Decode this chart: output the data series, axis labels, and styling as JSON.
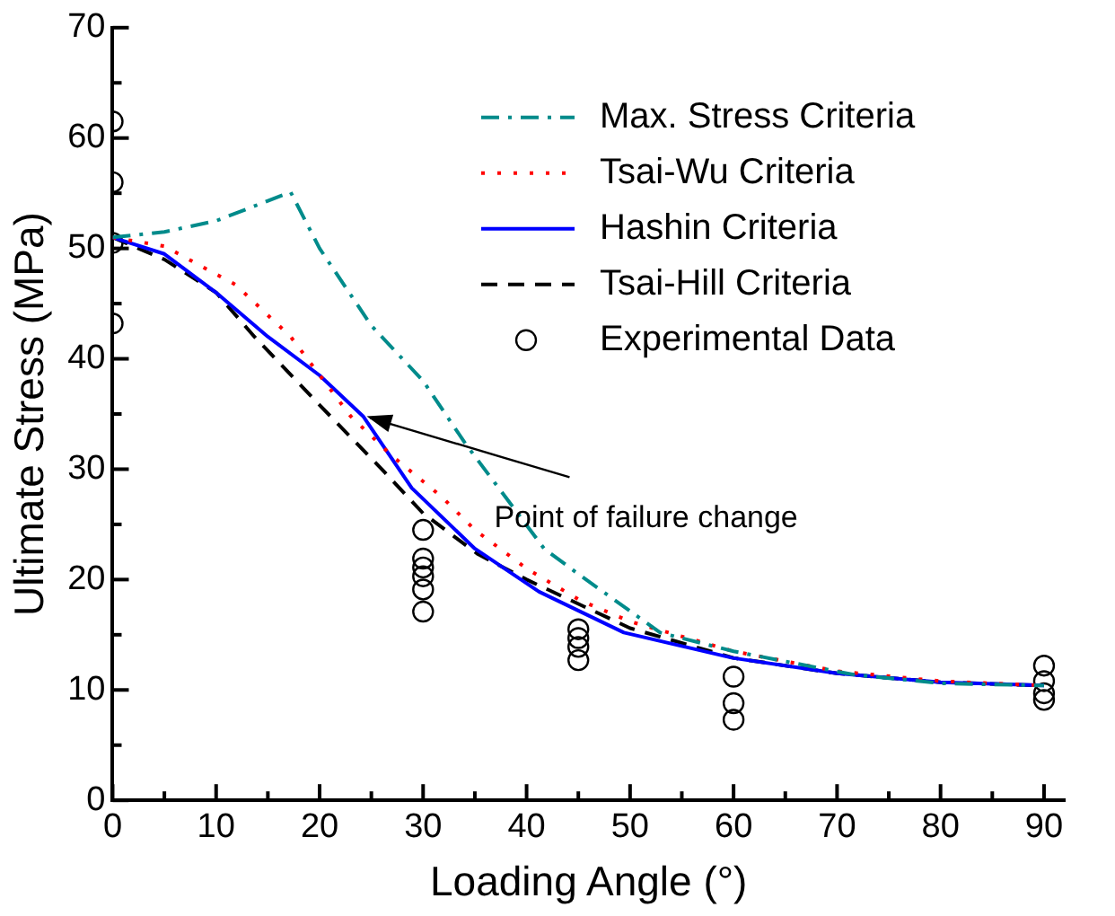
{
  "chart_data": {
    "type": "line",
    "xlabel": "Loading Angle (°)",
    "ylabel": "Ultimate Stress (MPa)",
    "xlim": [
      0,
      92
    ],
    "ylim": [
      0,
      70
    ],
    "xticks": [
      0,
      {
        "value": 5,
        "label": null
      },
      10,
      {
        "value": 15,
        "label": null
      },
      20,
      {
        "value": 25,
        "label": null
      },
      30,
      {
        "value": 35,
        "label": null
      },
      40,
      {
        "value": 45,
        "label": null
      },
      50,
      {
        "value": 55,
        "label": null
      },
      60,
      {
        "value": 65,
        "label": null
      },
      70,
      {
        "value": 75,
        "label": null
      },
      80,
      {
        "value": 85,
        "label": null
      },
      90
    ],
    "yticks": [
      0,
      {
        "value": 5,
        "label": null
      },
      10,
      {
        "value": 15,
        "label": null
      },
      20,
      {
        "value": 25,
        "label": null
      },
      30,
      {
        "value": 35,
        "label": null
      },
      40,
      {
        "value": 45,
        "label": null
      },
      50,
      {
        "value": 55,
        "label": null
      },
      60,
      {
        "value": 65,
        "label": null
      },
      70
    ],
    "grid": false,
    "legend": "top right",
    "series": [
      {
        "name": "Max. Stress Criteria",
        "color": "#008b8b",
        "line_style": "dashdot",
        "marker": "none",
        "x": [
          0,
          5,
          10,
          17.2,
          20,
          25,
          30,
          34.1,
          41.7,
          45,
          52.9,
          60,
          71.5,
          80,
          90
        ],
        "values": [
          51,
          51.5,
          52.5,
          55.1,
          50,
          43,
          38,
          32.3,
          22.8,
          20.5,
          15.2,
          13.5,
          11.4,
          10.6,
          10.4
        ]
      },
      {
        "name": "Tsai-Wu Criteria",
        "color": "#ff0000",
        "line_style": "dotted",
        "marker": "none",
        "x": [
          0,
          5,
          11.9,
          17.2,
          23,
          27,
          31.8,
          35,
          40,
          45.2,
          50,
          60,
          70,
          80,
          90
        ],
        "values": [
          51,
          50.2,
          46.7,
          42,
          34.8,
          31.2,
          27.5,
          24.5,
          21,
          18.1,
          16.2,
          13.5,
          11.7,
          10.8,
          10.4
        ]
      },
      {
        "name": "Hashin Criteria",
        "color": "#0000ff",
        "line_style": "solid",
        "marker": "none",
        "x": [
          0,
          5,
          10,
          15,
          20,
          24.2,
          28.9,
          35,
          41.2,
          49.4,
          59.9,
          70,
          80,
          90
        ],
        "values": [
          51,
          49.5,
          46,
          42,
          38.5,
          34.8,
          28.3,
          22.8,
          18.9,
          15.2,
          12.9,
          11.5,
          10.7,
          10.4
        ]
      },
      {
        "name": "Tsai-Hill Criteria",
        "color": "#000000",
        "line_style": "dashed",
        "marker": "none",
        "x": [
          0,
          5,
          10,
          13.7,
          19.6,
          26,
          30,
          35.3,
          40,
          50,
          60,
          70,
          80,
          90
        ],
        "values": [
          51,
          49,
          46,
          42,
          36.2,
          30,
          26,
          22.3,
          20,
          15.6,
          12.9,
          11.5,
          10.7,
          10.4
        ]
      },
      {
        "name": "Experimental Data",
        "type": "scatter",
        "color": "#000000",
        "marker": "circle",
        "x": [
          0,
          0,
          0,
          0,
          30,
          30,
          30,
          30,
          30,
          30,
          45,
          45,
          45,
          45,
          60,
          60,
          60,
          90,
          90,
          90,
          90
        ],
        "values": [
          61.5,
          56,
          50.5,
          43.2,
          24.5,
          21.9,
          21.1,
          20.3,
          19.1,
          17.1,
          15.5,
          14.7,
          13.9,
          12.7,
          11.2,
          8.8,
          7.3,
          12.2,
          10.8,
          9.7,
          9.1
        ]
      }
    ],
    "annotations": [
      {
        "text": "Point of failure change",
        "x": 24.2,
        "y": 34.8
      }
    ]
  }
}
